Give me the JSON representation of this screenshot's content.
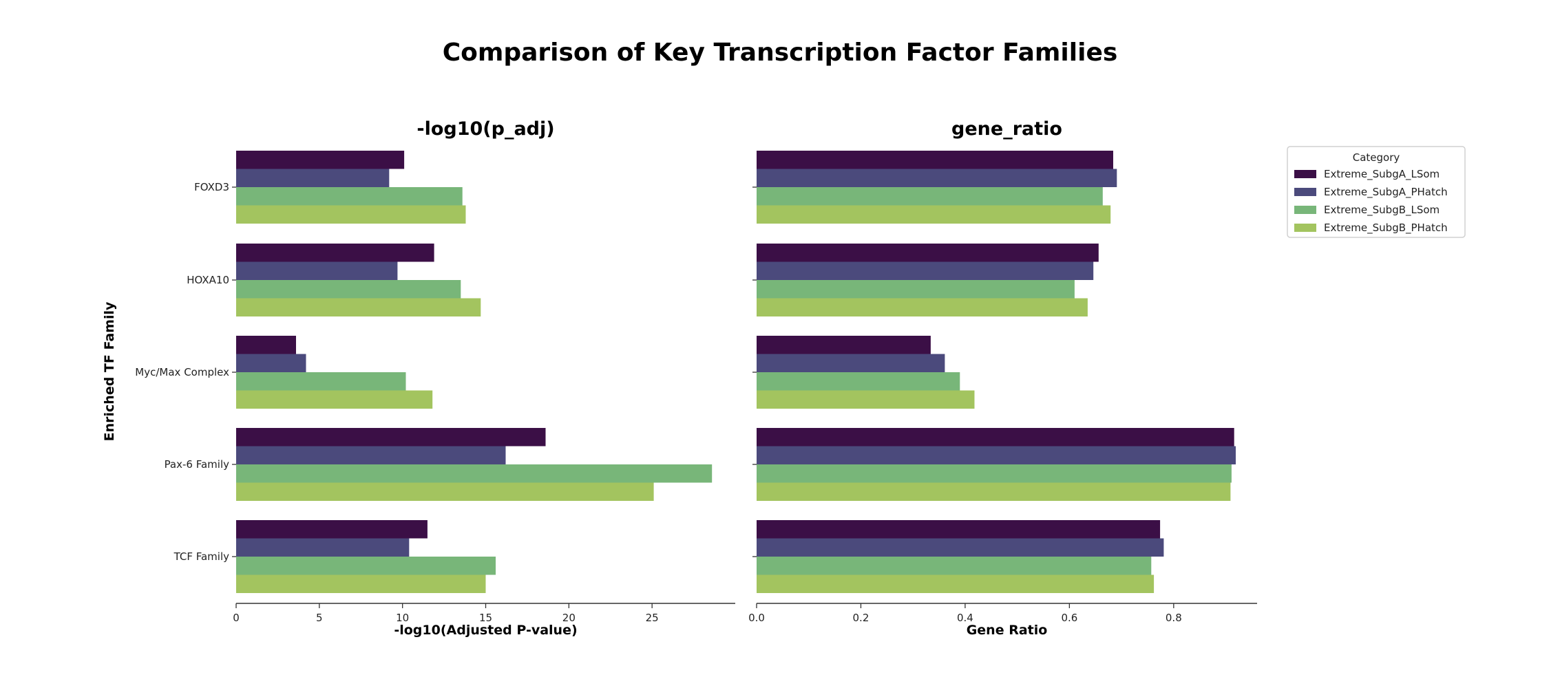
{
  "chart_data": {
    "title": "Comparison of Key Transcription Factor Families",
    "type": "bar",
    "orientation": "horizontal",
    "ylabel": "Enriched TF Family",
    "categories": [
      "FOXD3",
      "HOXA10",
      "Myc/Max Complex",
      "Pax-6 Family",
      "TCF Family"
    ],
    "legend": {
      "title": "Category",
      "placement": "outside-top-right",
      "entries": [
        "Extreme_SubgA_LSom",
        "Extreme_SubgA_PHatch",
        "Extreme_SubgB_LSom",
        "Extreme_SubgB_PHatch"
      ]
    },
    "colors": [
      "#3b0f46",
      "#4b4a7c",
      "#78b679",
      "#a3c45f"
    ],
    "panels": [
      {
        "title": "-log10(p_adj)",
        "xlabel": "-log10(Adjusted P-value)",
        "xlim": [
          0,
          30
        ],
        "xticks": [
          0,
          5,
          10,
          15,
          20,
          25
        ],
        "xtick_labels": [
          "0",
          "5",
          "10",
          "15",
          "20",
          "25"
        ],
        "series": [
          {
            "name": "Extreme_SubgA_LSom",
            "values": [
              10.1,
              11.9,
              3.6,
              18.6,
              11.5
            ]
          },
          {
            "name": "Extreme_SubgA_PHatch",
            "values": [
              9.2,
              9.7,
              4.2,
              16.2,
              10.4
            ]
          },
          {
            "name": "Extreme_SubgB_LSom",
            "values": [
              13.6,
              13.5,
              10.2,
              28.6,
              15.6
            ]
          },
          {
            "name": "Extreme_SubgB_PHatch",
            "values": [
              13.8,
              14.7,
              11.8,
              25.1,
              15.0
            ]
          }
        ]
      },
      {
        "title": "gene_ratio",
        "xlabel": "Gene Ratio",
        "xlim": [
          0,
          0.96
        ],
        "xticks": [
          0.0,
          0.2,
          0.4,
          0.6,
          0.8
        ],
        "xtick_labels": [
          "0.0",
          "0.2",
          "0.4",
          "0.6",
          "0.8"
        ],
        "series": [
          {
            "name": "Extreme_SubgA_LSom",
            "values": [
              0.684,
              0.656,
              0.334,
              0.916,
              0.774
            ]
          },
          {
            "name": "Extreme_SubgA_PHatch",
            "values": [
              0.691,
              0.646,
              0.361,
              0.919,
              0.781
            ]
          },
          {
            "name": "Extreme_SubgB_LSom",
            "values": [
              0.664,
              0.61,
              0.39,
              0.911,
              0.757
            ]
          },
          {
            "name": "Extreme_SubgB_PHatch",
            "values": [
              0.679,
              0.635,
              0.418,
              0.909,
              0.762
            ]
          }
        ]
      }
    ],
    "grid": false
  }
}
